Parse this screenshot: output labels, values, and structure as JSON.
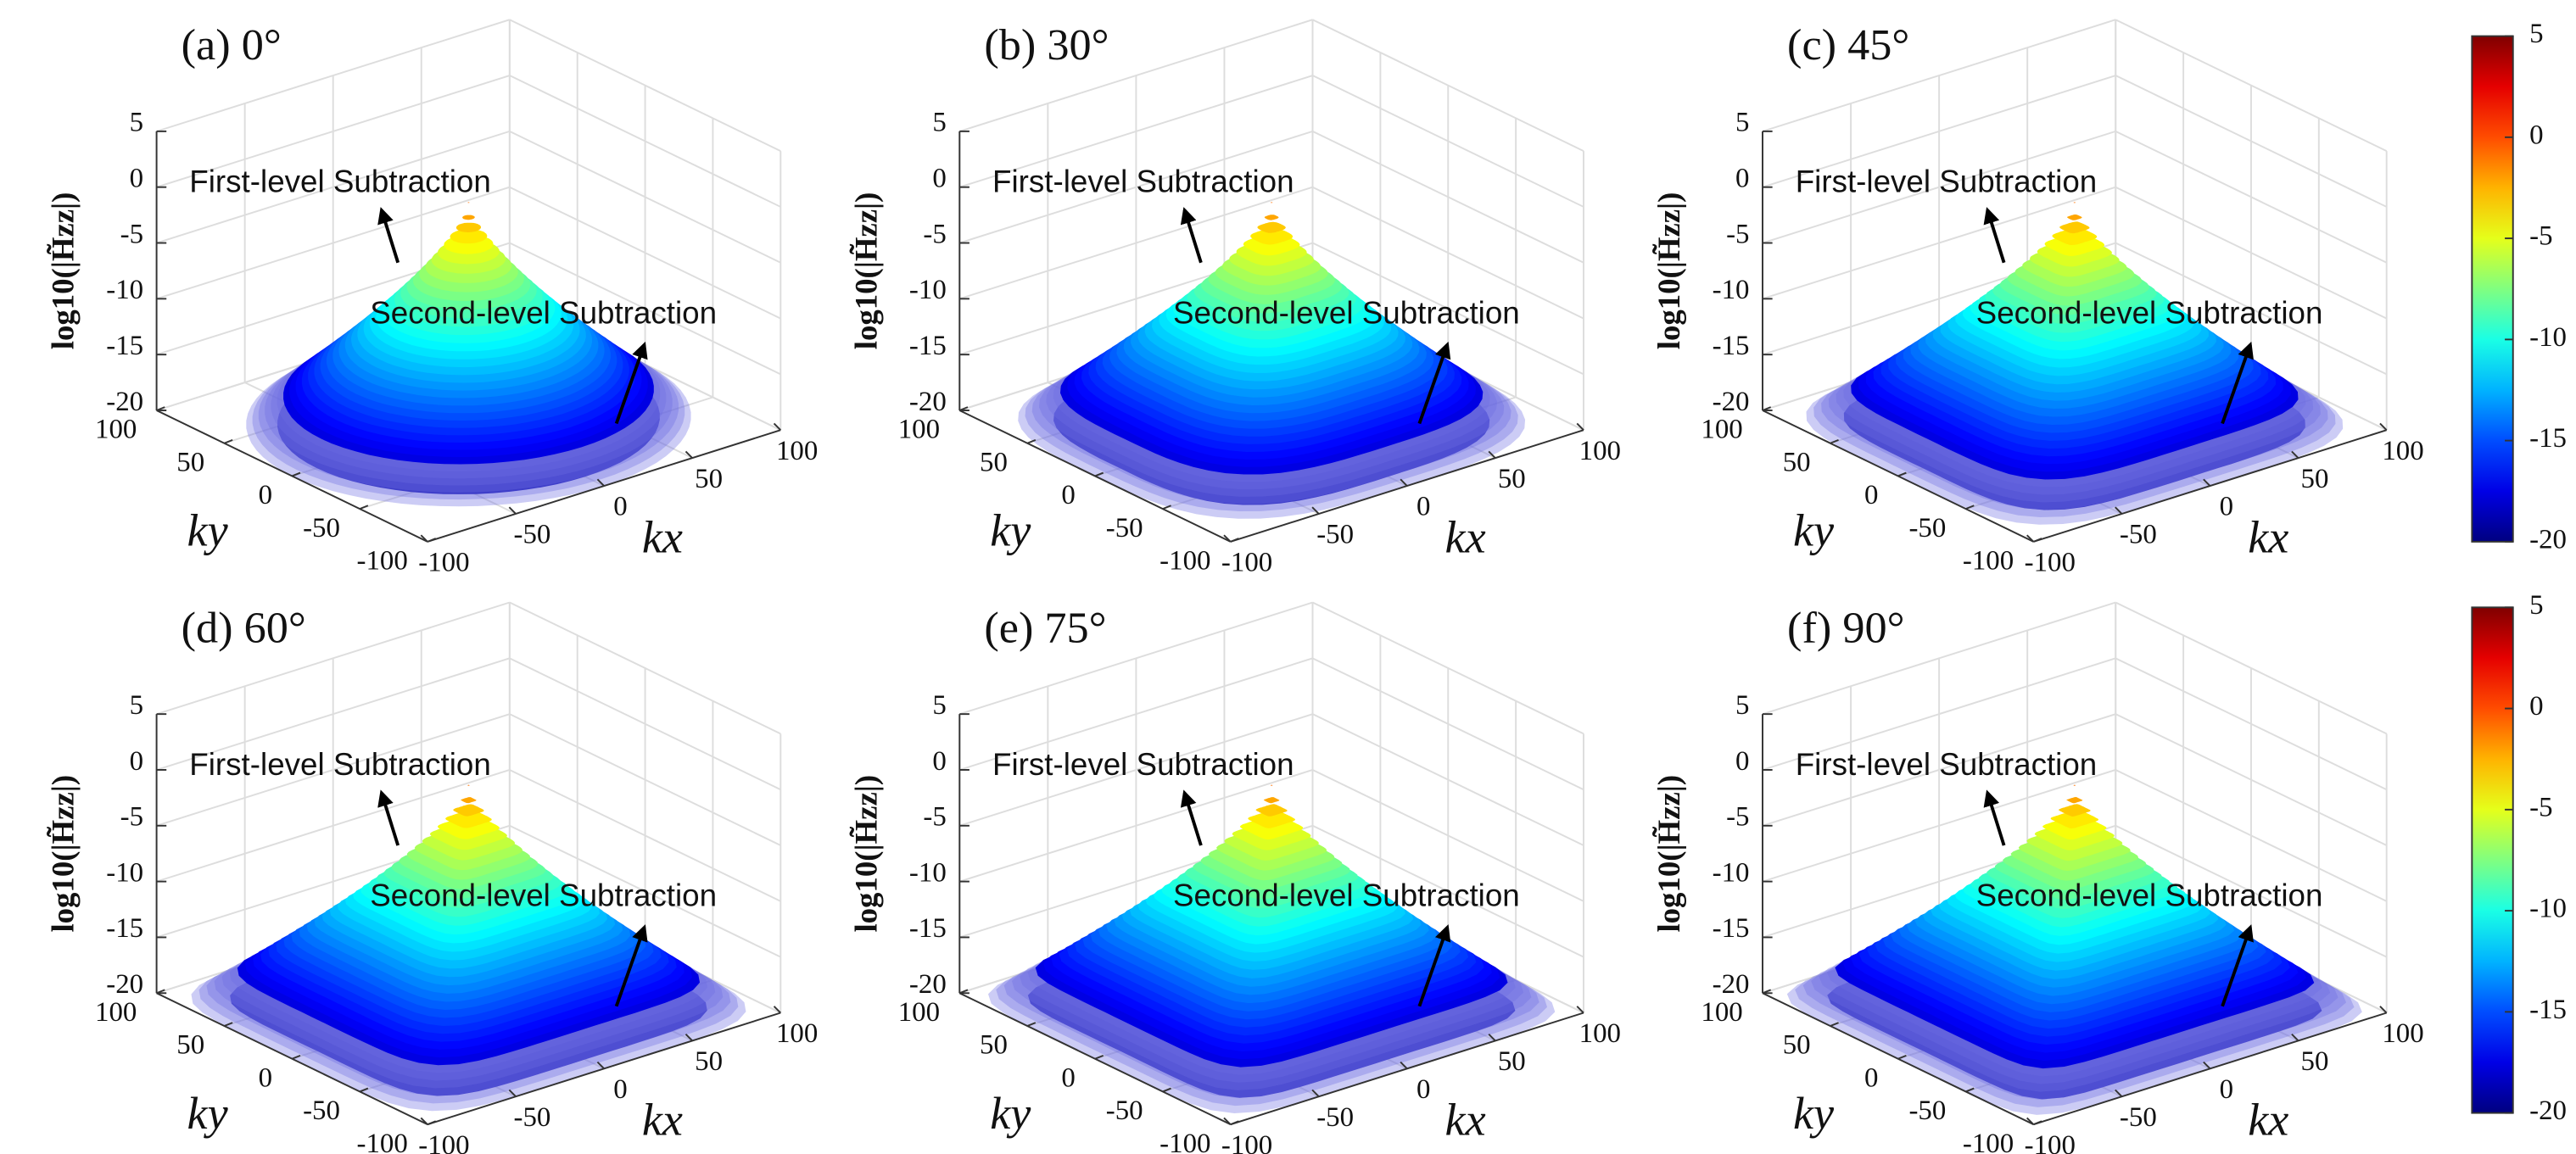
{
  "chart_data": [
    {
      "type": "surface",
      "title": "(a) 0°",
      "zlabel": "log10(|H̃zz|)",
      "xlabel": "kx",
      "ylabel": "ky",
      "annotations": [
        "First-level Subtraction",
        "Second-level Subtraction"
      ],
      "xlim": [
        -100,
        100
      ],
      "xticks": [
        -100,
        -50,
        0,
        50,
        100
      ],
      "ylim": [
        -100,
        100
      ],
      "yticks": [
        -100,
        -50,
        0,
        50,
        100
      ],
      "zlim": [
        -20,
        5
      ],
      "zticks": [
        -20,
        -15,
        -10,
        -5,
        0,
        5
      ],
      "grid": true
    },
    {
      "type": "surface",
      "title": "(b) 30°",
      "zlabel": "log10(|H̃zz|)",
      "xlabel": "kx",
      "ylabel": "ky",
      "annotations": [
        "First-level Subtraction",
        "Second-level Subtraction"
      ],
      "xlim": [
        -100,
        100
      ],
      "xticks": [
        -100,
        -50,
        0,
        50,
        100
      ],
      "ylim": [
        -100,
        100
      ],
      "yticks": [
        -100,
        -50,
        0,
        50,
        100
      ],
      "zlim": [
        -20,
        5
      ],
      "zticks": [
        -20,
        -15,
        -10,
        -5,
        0,
        5
      ],
      "grid": true
    },
    {
      "type": "surface",
      "title": "(c) 45°",
      "zlabel": "log10(|H̃zz|)",
      "xlabel": "kx",
      "ylabel": "ky",
      "annotations": [
        "First-level Subtraction",
        "Second-level Subtraction"
      ],
      "xlim": [
        -100,
        100
      ],
      "xticks": [
        -100,
        -50,
        0,
        50,
        100
      ],
      "ylim": [
        -100,
        100
      ],
      "yticks": [
        -100,
        -50,
        0,
        50,
        100
      ],
      "zlim": [
        -20,
        5
      ],
      "zticks": [
        -20,
        -15,
        -10,
        -5,
        0,
        5
      ],
      "grid": true
    },
    {
      "type": "surface",
      "title": "(d) 60°",
      "zlabel": "log10(|H̃zz|)",
      "xlabel": "kx",
      "ylabel": "ky",
      "annotations": [
        "First-level Subtraction",
        "Second-level Subtraction"
      ],
      "xlim": [
        -100,
        100
      ],
      "xticks": [
        -100,
        -50,
        0,
        50,
        100
      ],
      "ylim": [
        -100,
        100
      ],
      "yticks": [
        -100,
        -50,
        0,
        50,
        100
      ],
      "zlim": [
        -20,
        5
      ],
      "zticks": [
        -20,
        -15,
        -10,
        -5,
        0,
        5
      ],
      "grid": true
    },
    {
      "type": "surface",
      "title": "(e) 75°",
      "zlabel": "log10(|H̃zz|)",
      "xlabel": "kx",
      "ylabel": "ky",
      "annotations": [
        "First-level Subtraction",
        "Second-level Subtraction"
      ],
      "xlim": [
        -100,
        100
      ],
      "xticks": [
        -100,
        -50,
        0,
        50,
        100
      ],
      "ylim": [
        -100,
        100
      ],
      "yticks": [
        -100,
        -50,
        0,
        50,
        100
      ],
      "zlim": [
        -20,
        5
      ],
      "zticks": [
        -20,
        -15,
        -10,
        -5,
        0,
        5
      ],
      "grid": true
    },
    {
      "type": "surface",
      "title": "(f) 90°",
      "zlabel": "log10(|H̃zz|)",
      "xlabel": "kx",
      "ylabel": "ky",
      "annotations": [
        "First-level Subtraction",
        "Second-level Subtraction"
      ],
      "xlim": [
        -100,
        100
      ],
      "xticks": [
        -100,
        -50,
        0,
        50,
        100
      ],
      "ylim": [
        -100,
        100
      ],
      "yticks": [
        -100,
        -50,
        0,
        50,
        100
      ],
      "zlim": [
        -20,
        5
      ],
      "zticks": [
        -20,
        -15,
        -10,
        -5,
        0,
        5
      ],
      "grid": true
    },
    {
      "type": "colorbar",
      "clim": [
        -20,
        5
      ],
      "ticks": [
        -20,
        -15,
        -10,
        -5,
        0,
        5
      ]
    },
    {
      "type": "colorbar",
      "clim": [
        -20,
        5
      ],
      "ticks": [
        -20,
        -15,
        -10,
        -5,
        0,
        5
      ]
    }
  ]
}
